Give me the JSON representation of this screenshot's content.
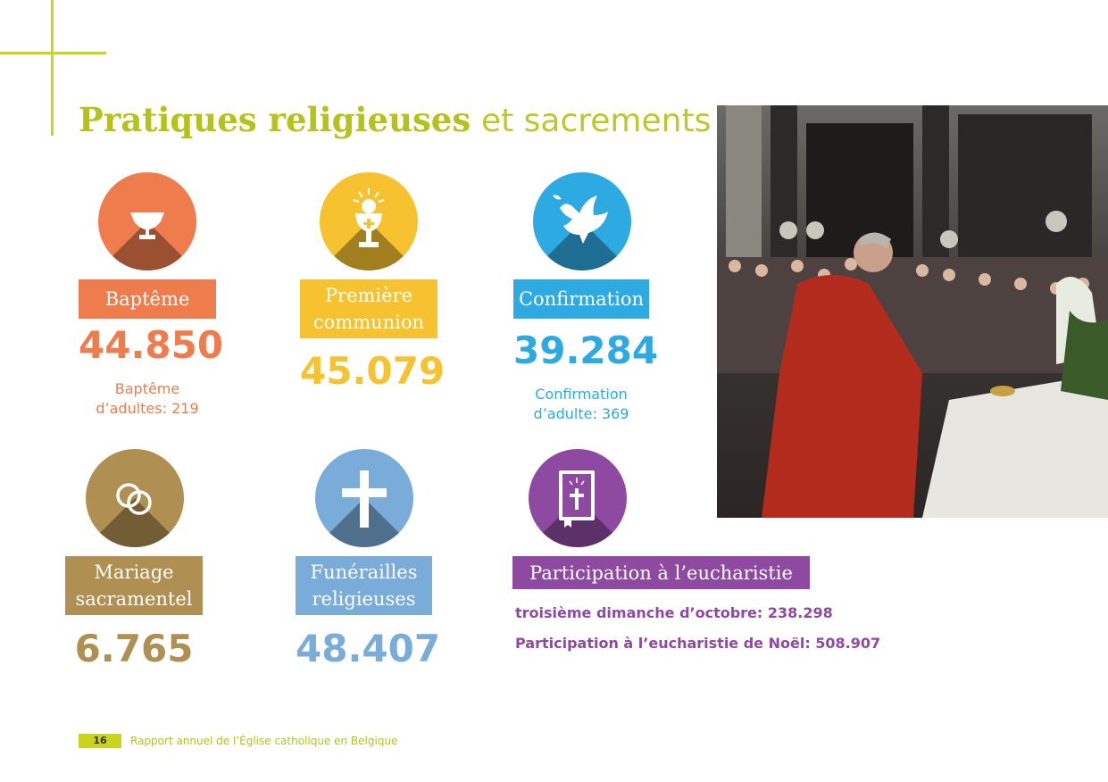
{
  "title": {
    "bold": "Pratiques religieuses",
    "light": "et sacrements"
  },
  "colors": {
    "green": "#b5c21a",
    "orange": "#ef7c4d",
    "yellow": "#f7c22f",
    "blue": "#2eaae2",
    "gold": "#b08f52",
    "lightblue": "#79acd8",
    "purple": "#8e4aa1"
  },
  "stats": {
    "bapteme": {
      "label": "Baptême",
      "value": "44.850",
      "sub_line1": "Baptême",
      "sub_line2": "d’adultes: 219",
      "icon": "baptismal-font-icon"
    },
    "communion": {
      "label_line1": "Première",
      "label_line2": "communion",
      "value": "45.079",
      "icon": "chalice-host-icon"
    },
    "confirmation": {
      "label": "Confirmation",
      "value": "39.284",
      "sub_line1": "Confirmation",
      "sub_line2": "d’adulte: 369",
      "icon": "dove-icon"
    },
    "mariage": {
      "label_line1": "Mariage",
      "label_line2": "sacramentel",
      "value": "6.765",
      "icon": "wedding-rings-icon"
    },
    "funerailles": {
      "label_line1": "Funérailles",
      "label_line2": "religieuses",
      "value": "48.407",
      "icon": "cross-icon"
    },
    "eucharistie": {
      "label": "Participation à l’eucharistie",
      "line1": "troisième dimanche d’octobre: 238.298",
      "line2": "Participation à l’eucharistie de Noël: 508.907",
      "icon": "bible-icon"
    }
  },
  "footer": {
    "page": "16",
    "text": "Rapport annuel de l’Église catholique en Belgique"
  }
}
